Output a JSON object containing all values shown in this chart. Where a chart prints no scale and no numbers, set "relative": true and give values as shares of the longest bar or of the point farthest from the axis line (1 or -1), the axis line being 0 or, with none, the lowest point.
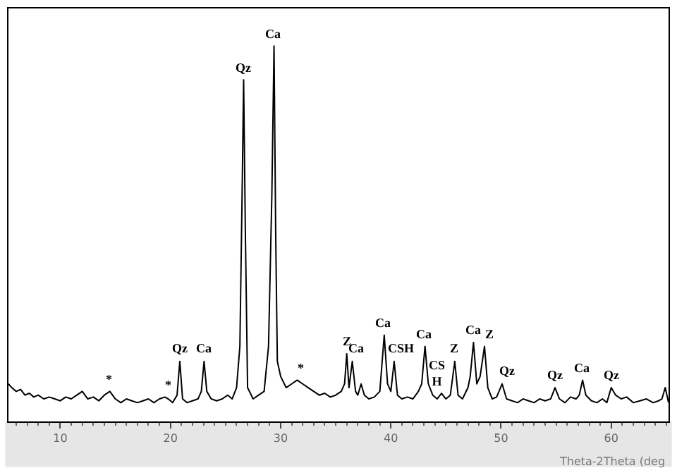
{
  "chart_data": {
    "type": "line",
    "relative": true,
    "xlabel": "Theta-2Theta (deg",
    "xlim": [
      5.3,
      65.2
    ],
    "xticks": [
      10,
      20,
      30,
      40,
      50,
      60
    ],
    "marker": "none",
    "line_style": "solid",
    "series": [
      {
        "color": "#000000",
        "x": [
          5.3,
          5.6,
          6.0,
          6.4,
          6.8,
          7.2,
          7.6,
          8.0,
          8.5,
          9.0,
          9.5,
          10.0,
          10.5,
          11.0,
          11.5,
          12.0,
          12.5,
          13.0,
          13.5,
          14.0,
          14.5,
          15.0,
          15.5,
          16.0,
          16.5,
          17.0,
          17.5,
          18.0,
          18.5,
          19.0,
          19.5,
          19.8,
          20.2,
          20.6,
          20.85,
          21.1,
          21.5,
          22.0,
          22.5,
          22.8,
          23.05,
          23.3,
          23.7,
          24.2,
          24.7,
          25.2,
          25.6,
          26.0,
          26.3,
          26.5,
          26.64,
          26.8,
          27.0,
          27.5,
          28.0,
          28.5,
          28.9,
          29.2,
          29.4,
          29.55,
          29.7,
          30.0,
          30.5,
          31.0,
          31.5,
          32.0,
          32.5,
          33.0,
          33.5,
          34.0,
          34.5,
          35.0,
          35.5,
          35.8,
          36.0,
          36.2,
          36.5,
          36.8,
          37.0,
          37.3,
          37.6,
          38.0,
          38.5,
          39.0,
          39.4,
          39.7,
          40.0,
          40.3,
          40.6,
          41.0,
          41.5,
          42.0,
          42.5,
          42.8,
          43.1,
          43.4,
          43.8,
          44.2,
          44.6,
          45.0,
          45.4,
          45.8,
          46.1,
          46.5,
          47.0,
          47.2,
          47.5,
          47.8,
          48.1,
          48.5,
          48.8,
          49.2,
          49.6,
          50.1,
          50.5,
          51.0,
          51.5,
          52.0,
          52.5,
          53.0,
          53.5,
          54.0,
          54.5,
          54.9,
          55.3,
          55.8,
          56.3,
          56.8,
          57.1,
          57.4,
          57.7,
          58.2,
          58.7,
          59.2,
          59.6,
          60.0,
          60.4,
          60.9,
          61.4,
          62.0,
          62.6,
          63.2,
          63.8,
          64.3,
          64.6,
          64.9,
          65.2
        ],
        "values": [
          0.1,
          0.09,
          0.08,
          0.085,
          0.07,
          0.075,
          0.065,
          0.07,
          0.06,
          0.065,
          0.06,
          0.055,
          0.065,
          0.06,
          0.07,
          0.08,
          0.06,
          0.065,
          0.055,
          0.07,
          0.08,
          0.06,
          0.05,
          0.06,
          0.055,
          0.05,
          0.055,
          0.06,
          0.05,
          0.06,
          0.065,
          0.06,
          0.05,
          0.07,
          0.16,
          0.06,
          0.05,
          0.055,
          0.06,
          0.08,
          0.16,
          0.08,
          0.06,
          0.055,
          0.06,
          0.07,
          0.06,
          0.09,
          0.2,
          0.6,
          0.91,
          0.5,
          0.09,
          0.06,
          0.07,
          0.08,
          0.2,
          0.6,
          1.0,
          0.5,
          0.16,
          0.12,
          0.09,
          0.1,
          0.11,
          0.1,
          0.09,
          0.08,
          0.07,
          0.075,
          0.065,
          0.07,
          0.08,
          0.1,
          0.18,
          0.09,
          0.16,
          0.08,
          0.07,
          0.1,
          0.07,
          0.06,
          0.065,
          0.08,
          0.23,
          0.1,
          0.08,
          0.16,
          0.07,
          0.06,
          0.065,
          0.06,
          0.08,
          0.1,
          0.2,
          0.1,
          0.07,
          0.06,
          0.075,
          0.06,
          0.07,
          0.16,
          0.07,
          0.06,
          0.09,
          0.12,
          0.21,
          0.1,
          0.12,
          0.2,
          0.09,
          0.06,
          0.065,
          0.1,
          0.06,
          0.055,
          0.05,
          0.06,
          0.055,
          0.05,
          0.06,
          0.055,
          0.06,
          0.09,
          0.06,
          0.05,
          0.065,
          0.06,
          0.07,
          0.11,
          0.07,
          0.055,
          0.05,
          0.06,
          0.05,
          0.09,
          0.07,
          0.06,
          0.065,
          0.05,
          0.055,
          0.06,
          0.05,
          0.055,
          0.06,
          0.09,
          0.05
        ]
      }
    ],
    "annotations": [
      {
        "text": "*",
        "x": 14.5,
        "y": 0.08
      },
      {
        "text": "*",
        "x": 19.8,
        "y": 0.065
      },
      {
        "text": "Qz",
        "x": 20.85,
        "y": 0.16
      },
      {
        "text": "Ca",
        "x": 23.05,
        "y": 0.16
      },
      {
        "text": "Qz",
        "x": 26.64,
        "y": 0.91
      },
      {
        "text": "Ca",
        "x": 29.4,
        "y": 1.0
      },
      {
        "text": "*",
        "x": 31.8,
        "y": 0.11
      },
      {
        "text": "Z",
        "x": 36.0,
        "y": 0.18
      },
      {
        "text": "Ca",
        "x": 36.9,
        "y": 0.16
      },
      {
        "text": "Ca",
        "x": 39.4,
        "y": 0.23
      },
      {
        "text": "CSH",
        "x": 41.0,
        "y": 0.16
      },
      {
        "text": "Ca",
        "x": 43.1,
        "y": 0.2
      },
      {
        "text": "CS\nH",
        "x": 44.2,
        "y": 0.07
      },
      {
        "text": "Z",
        "x": 45.8,
        "y": 0.16
      },
      {
        "text": "Ca",
        "x": 47.5,
        "y": 0.21
      },
      {
        "text": "Z",
        "x": 48.9,
        "y": 0.2
      },
      {
        "text": "Qz",
        "x": 50.6,
        "y": 0.1
      },
      {
        "text": "Qz",
        "x": 54.9,
        "y": 0.09
      },
      {
        "text": "Ca",
        "x": 57.4,
        "y": 0.11
      },
      {
        "text": "Qz",
        "x": 60.0,
        "y": 0.09
      }
    ]
  }
}
